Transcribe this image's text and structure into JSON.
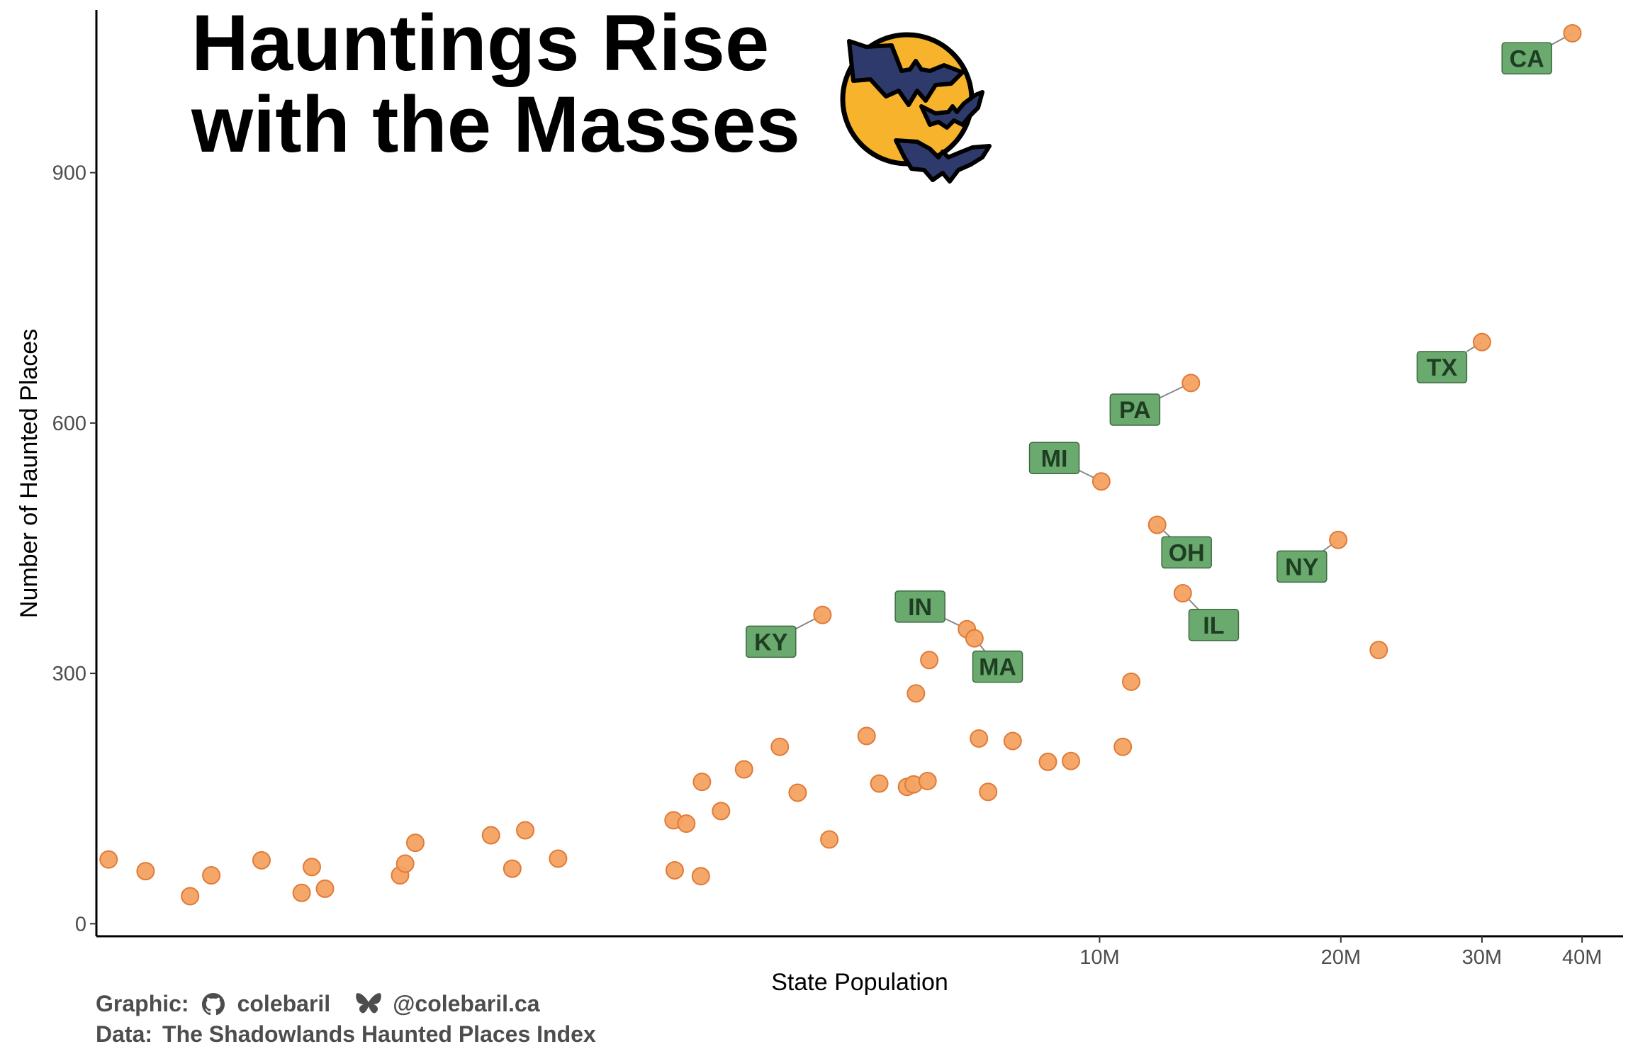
{
  "title": [
    "Hauntings Rise",
    "with the Masses"
  ],
  "caption": {
    "graphic_label": "Graphic:",
    "github_handle": "colebaril",
    "bluesky_handle": "@colebaril.ca",
    "data_label": "Data:",
    "data_source": "The Shadowlands Haunted Places Index"
  },
  "colors": {
    "point": "#F4A261",
    "point_stroke": "#E07B39",
    "label_fill": "#6BAA6F",
    "label_text": "#1F3D22",
    "moon": "#F7B32B",
    "bat": "#2E3A6B"
  },
  "icons": [
    "moon-icon",
    "bat-icon",
    "github-icon",
    "butterfly-icon"
  ],
  "chart_data": {
    "type": "scatter",
    "xlabel": "State Population",
    "ylabel": "Number of Haunted Places",
    "x_scale": "log",
    "xlim": [
      560000,
      45000000
    ],
    "ylim": [
      -15,
      1095
    ],
    "x_ticks": [
      {
        "value": 10000000,
        "label": "10M"
      },
      {
        "value": 20000000,
        "label": "20M"
      },
      {
        "value": 30000000,
        "label": "30M"
      },
      {
        "value": 40000000,
        "label": "40M"
      }
    ],
    "y_ticks": [
      {
        "value": 0,
        "label": "0"
      },
      {
        "value": 300,
        "label": "300"
      },
      {
        "value": 600,
        "label": "600"
      },
      {
        "value": 900,
        "label": "900"
      }
    ],
    "grid": false,
    "points": [
      {
        "x": 580000,
        "y": 77
      },
      {
        "x": 645000,
        "y": 63
      },
      {
        "x": 733000,
        "y": 33
      },
      {
        "x": 779000,
        "y": 58
      },
      {
        "x": 900000,
        "y": 76
      },
      {
        "x": 1010000,
        "y": 37
      },
      {
        "x": 1040000,
        "y": 68
      },
      {
        "x": 1080000,
        "y": 42
      },
      {
        "x": 1340000,
        "y": 58
      },
      {
        "x": 1360000,
        "y": 72
      },
      {
        "x": 1400000,
        "y": 97
      },
      {
        "x": 1740000,
        "y": 106
      },
      {
        "x": 1850000,
        "y": 66
      },
      {
        "x": 1920000,
        "y": 112
      },
      {
        "x": 2110000,
        "y": 78
      },
      {
        "x": 2940000,
        "y": 124
      },
      {
        "x": 2950000,
        "y": 64
      },
      {
        "x": 3050000,
        "y": 120
      },
      {
        "x": 3180000,
        "y": 57
      },
      {
        "x": 3190000,
        "y": 170
      },
      {
        "x": 3370000,
        "y": 135
      },
      {
        "x": 3600000,
        "y": 185
      },
      {
        "x": 3990000,
        "y": 212
      },
      {
        "x": 4200000,
        "y": 157
      },
      {
        "x": 4510000,
        "y": 370,
        "label": "KY"
      },
      {
        "x": 4600000,
        "y": 101
      },
      {
        "x": 5120000,
        "y": 225
      },
      {
        "x": 5310000,
        "y": 168
      },
      {
        "x": 5750000,
        "y": 164
      },
      {
        "x": 5860000,
        "y": 167
      },
      {
        "x": 5900000,
        "y": 276
      },
      {
        "x": 6100000,
        "y": 171
      },
      {
        "x": 6130000,
        "y": 316
      },
      {
        "x": 6830000,
        "y": 353,
        "label": "IN"
      },
      {
        "x": 6980000,
        "y": 342,
        "label": "MA"
      },
      {
        "x": 7070000,
        "y": 222
      },
      {
        "x": 7260000,
        "y": 158
      },
      {
        "x": 7790000,
        "y": 219
      },
      {
        "x": 8620000,
        "y": 194
      },
      {
        "x": 9210000,
        "y": 195
      },
      {
        "x": 10050000,
        "y": 530,
        "label": "MI"
      },
      {
        "x": 10690000,
        "y": 212
      },
      {
        "x": 10950000,
        "y": 290
      },
      {
        "x": 11800000,
        "y": 478,
        "label": "OH"
      },
      {
        "x": 12700000,
        "y": 396,
        "label": "IL"
      },
      {
        "x": 13000000,
        "y": 648,
        "label": "PA"
      },
      {
        "x": 19850000,
        "y": 460,
        "label": "NY"
      },
      {
        "x": 22300000,
        "y": 328
      },
      {
        "x": 30000000,
        "y": 697,
        "label": "TX"
      },
      {
        "x": 38900000,
        "y": 1067,
        "label": "CA"
      }
    ],
    "labels": [
      {
        "text": "KY",
        "x": 3890000,
        "y": 338
      },
      {
        "text": "IN",
        "x": 5970000,
        "y": 380
      },
      {
        "text": "MA",
        "x": 7460000,
        "y": 308
      },
      {
        "text": "MI",
        "x": 8780000,
        "y": 558
      },
      {
        "text": "PA",
        "x": 11070000,
        "y": 616
      },
      {
        "text": "OH",
        "x": 12840000,
        "y": 445
      },
      {
        "text": "IL",
        "x": 13880000,
        "y": 358
      },
      {
        "text": "NY",
        "x": 17880000,
        "y": 428
      },
      {
        "text": "TX",
        "x": 26740000,
        "y": 667
      },
      {
        "text": "CA",
        "x": 34130000,
        "y": 1037
      }
    ]
  }
}
